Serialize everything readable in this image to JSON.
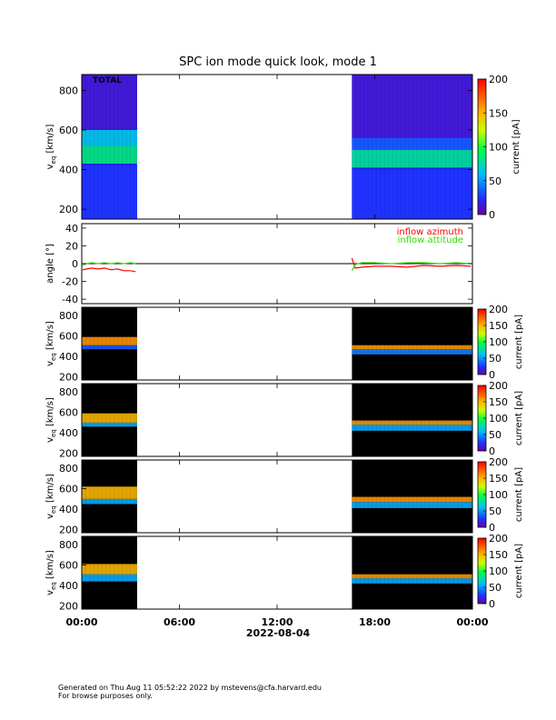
{
  "title": "SPC ion mode quick look, mode 1",
  "date_label": "2022-08-04",
  "footer": {
    "line1": "Generated on Thu Aug 11 05:52:22 2022 by mstevens@cfa.harvard.edu",
    "line2": "For browse purposes only."
  },
  "colors": {
    "background_panel": "#000000",
    "data_gap": "#ffffff",
    "azimuth": "#ff0000",
    "attitude": "#33dd00"
  },
  "chart_data": [
    {
      "type": "heatmap",
      "panel_label": "TOTAL",
      "x_ticks": [
        "00:00",
        "06:00",
        "12:00",
        "18:00",
        "00:00"
      ],
      "xlim_hours": [
        0,
        24
      ],
      "ylabel": "v_eq [km/s]",
      "ylim": [
        150,
        880
      ],
      "y_ticks": [
        200,
        400,
        600,
        800
      ],
      "colorbar": {
        "label": "current [pA]",
        "range": [
          0,
          200
        ],
        "ticks": [
          0,
          50,
          100,
          150,
          200
        ]
      },
      "background_color": "#2222ee",
      "data_coverage_hours": [
        [
          0,
          3.4
        ],
        [
          16.6,
          24
        ]
      ],
      "segments": [
        {
          "t_start": 0,
          "t_end": 3.4,
          "bands": [
            {
              "vmin": 150,
              "vmax": 420,
              "value": 25
            },
            {
              "vmin": 430,
              "vmax": 520,
              "value": 85
            },
            {
              "vmin": 520,
              "vmax": 600,
              "value": 65
            },
            {
              "vmin": 600,
              "vmax": 880,
              "value": 12
            }
          ]
        },
        {
          "t_start": 16.6,
          "t_end": 24,
          "bands": [
            {
              "vmin": 150,
              "vmax": 400,
              "value": 25
            },
            {
              "vmin": 410,
              "vmax": 500,
              "value": 80
            },
            {
              "vmin": 500,
              "vmax": 560,
              "value": 35
            },
            {
              "vmin": 560,
              "vmax": 880,
              "value": 12
            }
          ]
        }
      ]
    },
    {
      "type": "line",
      "ylabel": "angle [°]",
      "ylim": [
        -45,
        45
      ],
      "y_ticks": [
        -40,
        -20,
        0,
        20,
        40
      ],
      "zero_line": true,
      "series": [
        {
          "name": "inflow azimuth",
          "color": "#ff0000",
          "points": [
            [
              0.05,
              -7
            ],
            [
              0.3,
              -6
            ],
            [
              0.6,
              -5
            ],
            [
              1.0,
              -6
            ],
            [
              1.4,
              -5
            ],
            [
              1.8,
              -7
            ],
            [
              2.2,
              -6
            ],
            [
              2.6,
              -8
            ],
            [
              3.0,
              -8
            ],
            [
              3.3,
              -9
            ],
            [
              16.6,
              6
            ],
            [
              16.8,
              -5
            ],
            [
              17.2,
              -4
            ],
            [
              18.0,
              -3
            ],
            [
              19.0,
              -3
            ],
            [
              20.0,
              -4
            ],
            [
              21.0,
              -2
            ],
            [
              22.0,
              -3
            ],
            [
              23.0,
              -2
            ],
            [
              23.9,
              -3
            ]
          ]
        },
        {
          "name": "inflow attitude",
          "color": "#33dd00",
          "points": [
            [
              0.05,
              -2
            ],
            [
              0.3,
              0
            ],
            [
              0.6,
              1
            ],
            [
              1.0,
              0
            ],
            [
              1.4,
              1
            ],
            [
              1.8,
              0
            ],
            [
              2.2,
              1
            ],
            [
              2.6,
              0
            ],
            [
              3.0,
              1
            ],
            [
              3.3,
              0
            ],
            [
              16.6,
              -8
            ],
            [
              16.8,
              -1
            ],
            [
              17.2,
              1
            ],
            [
              18.0,
              1
            ],
            [
              19.0,
              0
            ],
            [
              20.0,
              1
            ],
            [
              21.0,
              1
            ],
            [
              22.0,
              0
            ],
            [
              23.0,
              1
            ],
            [
              23.9,
              0
            ]
          ]
        }
      ]
    },
    {
      "type": "heatmap",
      "ylabel": "v_eq [km/s]",
      "ylim": [
        170,
        880
      ],
      "y_ticks": [
        200,
        400,
        600,
        800
      ],
      "colorbar": {
        "label": "current [pA]",
        "range": [
          0,
          200
        ],
        "ticks": [
          0,
          50,
          100,
          150,
          200
        ]
      },
      "background_color": "#000000",
      "segments": [
        {
          "t_start": 0,
          "t_end": 3.4,
          "bands": [
            {
              "vmin": 470,
              "vmax": 510,
              "value": 35
            },
            {
              "vmin": 510,
              "vmax": 590,
              "value": 160
            }
          ]
        },
        {
          "t_start": 16.6,
          "t_end": 24,
          "bands": [
            {
              "vmin": 420,
              "vmax": 470,
              "value": 45
            },
            {
              "vmin": 470,
              "vmax": 510,
              "value": 160
            }
          ]
        }
      ]
    },
    {
      "type": "heatmap",
      "ylabel": "v_eq [km/s]",
      "ylim": [
        170,
        880
      ],
      "y_ticks": [
        200,
        400,
        600,
        800
      ],
      "colorbar": {
        "label": "current [pA]",
        "range": [
          0,
          200
        ],
        "ticks": [
          0,
          50,
          100,
          150,
          200
        ]
      },
      "background_color": "#000000",
      "segments": [
        {
          "t_start": 0,
          "t_end": 3.4,
          "bands": [
            {
              "vmin": 460,
              "vmax": 500,
              "value": 55
            },
            {
              "vmin": 500,
              "vmax": 590,
              "value": 150
            }
          ]
        },
        {
          "t_start": 16.6,
          "t_end": 24,
          "bands": [
            {
              "vmin": 420,
              "vmax": 480,
              "value": 55
            },
            {
              "vmin": 480,
              "vmax": 520,
              "value": 160
            }
          ]
        }
      ]
    },
    {
      "type": "heatmap",
      "ylabel": "v_eq [km/s]",
      "ylim": [
        170,
        880
      ],
      "y_ticks": [
        200,
        400,
        600,
        800
      ],
      "colorbar": {
        "label": "current [pA]",
        "range": [
          0,
          200
        ],
        "ticks": [
          0,
          50,
          100,
          150,
          200
        ]
      },
      "background_color": "#000000",
      "segments": [
        {
          "t_start": 0,
          "t_end": 3.4,
          "bands": [
            {
              "vmin": 450,
              "vmax": 500,
              "value": 55
            },
            {
              "vmin": 500,
              "vmax": 620,
              "value": 150
            }
          ]
        },
        {
          "t_start": 16.6,
          "t_end": 24,
          "bands": [
            {
              "vmin": 410,
              "vmax": 470,
              "value": 55
            },
            {
              "vmin": 470,
              "vmax": 520,
              "value": 160
            }
          ]
        }
      ]
    },
    {
      "type": "heatmap",
      "ylabel": "v_eq [km/s]",
      "ylim": [
        170,
        880
      ],
      "y_ticks": [
        200,
        400,
        600,
        800
      ],
      "colorbar": {
        "label": "current [pA]",
        "range": [
          0,
          200
        ],
        "ticks": [
          0,
          50,
          100,
          150,
          200
        ]
      },
      "background_color": "#000000",
      "segments": [
        {
          "t_start": 0,
          "t_end": 3.4,
          "bands": [
            {
              "vmin": 440,
              "vmax": 510,
              "value": 55
            },
            {
              "vmin": 510,
              "vmax": 610,
              "value": 150
            }
          ]
        },
        {
          "t_start": 16.6,
          "t_end": 24,
          "bands": [
            {
              "vmin": 420,
              "vmax": 470,
              "value": 55
            },
            {
              "vmin": 470,
              "vmax": 510,
              "value": 160
            }
          ]
        }
      ]
    }
  ]
}
